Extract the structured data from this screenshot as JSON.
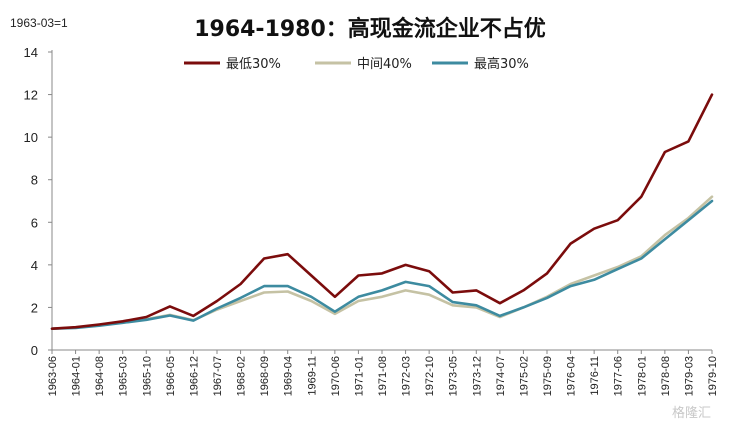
{
  "chart_data": {
    "type": "line",
    "title": "1964-1980：高现金流企业不占优",
    "note": "1963-03=1",
    "xlabel": "",
    "ylabel": "",
    "ylim": [
      0,
      14
    ],
    "yticks": [
      0,
      2,
      4,
      6,
      8,
      10,
      12,
      14
    ],
    "grid": false,
    "legend": "top",
    "x": [
      "1963-06",
      "1964-01",
      "1964-08",
      "1965-03",
      "1965-10",
      "1966-05",
      "1966-12",
      "1967-07",
      "1968-02",
      "1968-09",
      "1969-04",
      "1969-11",
      "1970-06",
      "1971-01",
      "1971-08",
      "1972-03",
      "1972-10",
      "1973-05",
      "1973-12",
      "1974-07",
      "1975-02",
      "1975-09",
      "1976-04",
      "1976-11",
      "1977-06",
      "1978-01",
      "1978-08",
      "1979-03",
      "1979-10"
    ],
    "series": [
      {
        "name": "最低30%",
        "color": "#7b0c0c",
        "values": [
          1.0,
          1.07,
          1.2,
          1.35,
          1.55,
          2.05,
          1.6,
          2.3,
          3.1,
          4.3,
          4.5,
          3.5,
          2.5,
          3.5,
          3.6,
          4.0,
          3.7,
          2.7,
          2.8,
          2.2,
          2.8,
          3.6,
          5.0,
          5.7,
          6.1,
          7.2,
          9.3,
          9.8,
          12.0
        ]
      },
      {
        "name": "中间40%",
        "color": "#c5c2a4",
        "values": [
          1.0,
          1.05,
          1.15,
          1.3,
          1.45,
          1.65,
          1.4,
          1.9,
          2.3,
          2.7,
          2.75,
          2.3,
          1.7,
          2.3,
          2.5,
          2.8,
          2.6,
          2.1,
          2.0,
          1.55,
          2.0,
          2.5,
          3.1,
          3.5,
          3.9,
          4.4,
          5.4,
          6.2,
          7.2
        ]
      },
      {
        "name": "最高30%",
        "color": "#3d8ba0",
        "values": [
          1.0,
          1.04,
          1.14,
          1.28,
          1.42,
          1.62,
          1.38,
          1.95,
          2.45,
          3.0,
          3.0,
          2.5,
          1.8,
          2.5,
          2.8,
          3.2,
          3.0,
          2.25,
          2.1,
          1.6,
          2.0,
          2.45,
          3.0,
          3.3,
          3.8,
          4.3,
          5.2,
          6.1,
          7.0
        ]
      }
    ]
  },
  "watermark": "格隆汇"
}
